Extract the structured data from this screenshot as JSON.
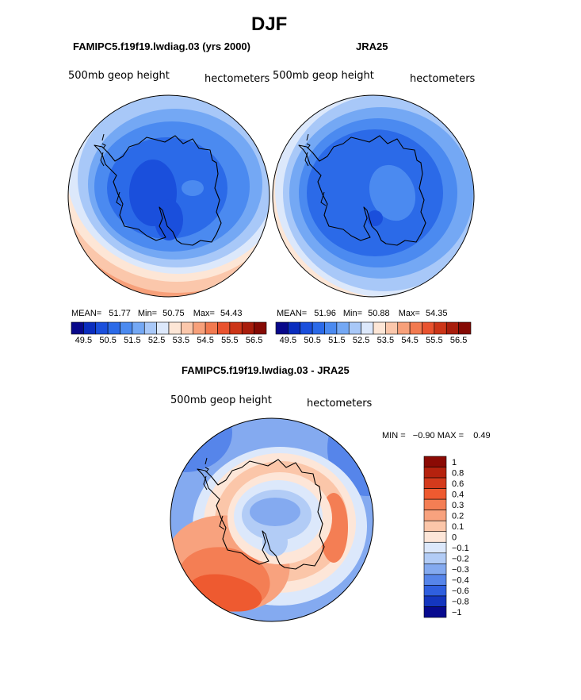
{
  "page_title": "DJF",
  "panels": {
    "left": {
      "case_title": "FAMIPC5.f19f19.lwdiag.03 (yrs 2000)",
      "variable": "500mb geop height",
      "units": "hectometers",
      "mean_label": "MEAN=",
      "mean_value": "51.77",
      "min_label": "Min=",
      "min_value": "50.75",
      "max_label": "Max=",
      "max_value": "54.43"
    },
    "right": {
      "case_title": "JRA25",
      "variable": "500mb geop height",
      "units": "hectometers",
      "mean_label": "MEAN=",
      "mean_value": "51.96",
      "min_label": "Min=",
      "min_value": "50.88",
      "max_label": "Max=",
      "max_value": "54.35"
    },
    "diff": {
      "case_title": "FAMIPC5.f19f19.lwdiag.03 - JRA25",
      "variable": "500mb geop height",
      "units": "hectometers",
      "stats": "MIN =   −0.90 MAX =    0.49"
    }
  },
  "chart_data": [
    {
      "type": "heatmap",
      "projection": "south-polar stereographic",
      "title": "FAMIPC5.f19f19.lwdiag.03 (yrs 2000)",
      "variable": "500mb geop height",
      "units": "hectometers",
      "mean": 51.77,
      "min": 50.75,
      "max": 54.43,
      "colorbar": {
        "orientation": "horizontal",
        "levels": [
          49.5,
          50.5,
          51.5,
          52.5,
          53.5,
          54.5,
          55.5,
          56.5
        ],
        "colors": [
          "#08088a",
          "#0a2dbe",
          "#1a4fdc",
          "#2b6ae8",
          "#4b8af0",
          "#74a8f4",
          "#a8c8f8",
          "#dce8fb",
          "#fde6d6",
          "#fbc7ab",
          "#f7a07a",
          "#f27a50",
          "#e9532f",
          "#cc3518",
          "#a81d0c",
          "#850a04"
        ]
      }
    },
    {
      "type": "heatmap",
      "projection": "south-polar stereographic",
      "title": "JRA25",
      "variable": "500mb geop height",
      "units": "hectometers",
      "mean": 51.96,
      "min": 50.88,
      "max": 54.35,
      "colorbar": {
        "orientation": "horizontal",
        "levels": [
          49.5,
          50.5,
          51.5,
          52.5,
          53.5,
          54.5,
          55.5,
          56.5
        ],
        "colors": [
          "#08088a",
          "#0a2dbe",
          "#1a4fdc",
          "#2b6ae8",
          "#4b8af0",
          "#74a8f4",
          "#a8c8f8",
          "#dce8fb",
          "#fde6d6",
          "#fbc7ab",
          "#f7a07a",
          "#f27a50",
          "#e9532f",
          "#cc3518",
          "#a81d0c",
          "#850a04"
        ]
      }
    },
    {
      "type": "heatmap",
      "projection": "south-polar stereographic",
      "title": "FAMIPC5.f19f19.lwdiag.03 - JRA25",
      "variable": "500mb geop height",
      "units": "hectometers",
      "min": -0.9,
      "max": 0.49,
      "colorbar": {
        "orientation": "vertical",
        "levels": [
          "1",
          "0.8",
          "0.6",
          "0.4",
          "0.3",
          "0.2",
          "0.1",
          "0",
          "−0.1",
          "−0.2",
          "−0.3",
          "−0.4",
          "−0.6",
          "−0.8",
          "−1"
        ],
        "colors": [
          "#8b0a04",
          "#b5220e",
          "#d43a1c",
          "#ee5a30",
          "#f47e54",
          "#f8a27e",
          "#fbc6a9",
          "#fde6d8",
          "#dce8fb",
          "#b2ccf6",
          "#84aaf0",
          "#5685ea",
          "#2f5fdf",
          "#1436bf",
          "#070a8f"
        ]
      }
    }
  ]
}
